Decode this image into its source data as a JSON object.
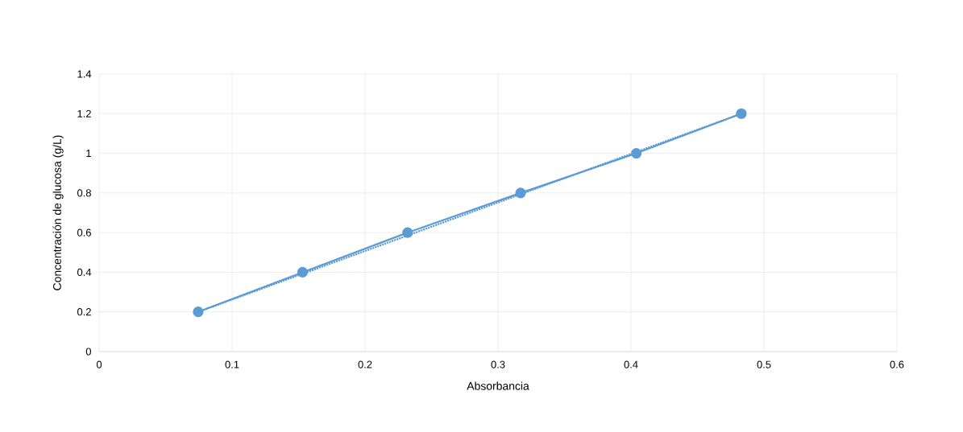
{
  "chart_data": {
    "type": "line",
    "xlabel": "Absorbancia",
    "ylabel": "Concentración de glucosa (g/L)",
    "series": [
      {
        "color": "#5b9bd5",
        "marker": "circle",
        "line_style": "solid",
        "x": [
          0.0745,
          0.153,
          0.232,
          0.317,
          0.404,
          0.483
        ],
        "values": [
          0.2,
          0.4,
          0.6,
          0.8,
          1.0,
          1.2
        ]
      },
      {
        "type": "line",
        "color": "#5b9bd5",
        "marker": "none",
        "line_style": "dotted",
        "x": [
          0.0745,
          0.483
        ],
        "values": [
          0.2,
          1.2
        ]
      }
    ],
    "xlim": [
      0,
      0.6
    ],
    "xticks": [
      0,
      0.1,
      0.2,
      0.3,
      0.4,
      0.5,
      0.6
    ],
    "ylim": [
      0,
      1.4
    ],
    "yticks": [
      0,
      0.2,
      0.4,
      0.6,
      0.8,
      1,
      1.2,
      1.4
    ],
    "grid": true
  }
}
